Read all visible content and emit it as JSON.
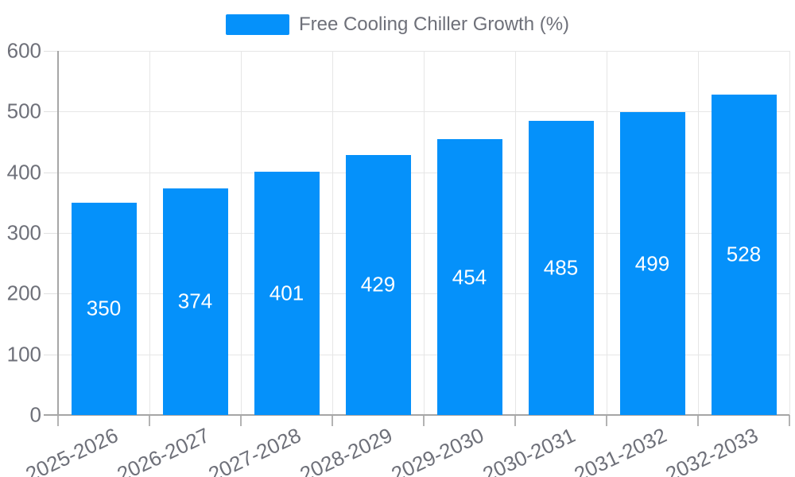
{
  "chart_data": {
    "type": "bar",
    "title": "Free Cooling Chiller Growth (%)",
    "categories": [
      "2025-2026",
      "2026-2027",
      "2027-2028",
      "2028-2029",
      "2029-2030",
      "2030-2031",
      "2031-2032",
      "2032-2033"
    ],
    "series": [
      {
        "name": "Free Cooling Chiller Growth (%)",
        "values": [
          350,
          374,
          401,
          429,
          454,
          485,
          499,
          528
        ]
      }
    ],
    "xlabel": "",
    "ylabel": "",
    "ylim": [
      0,
      600
    ],
    "yticks": [
      0,
      100,
      200,
      300,
      400,
      500,
      600
    ],
    "grid": true,
    "legend_position": "top-center",
    "x_label_rotation_deg": -25,
    "value_labels": "inside-center",
    "colors": {
      "bar": "#0591fa",
      "axis_label_text": "#6e7079",
      "legend_text": "#6e7079",
      "gridline": "#e6e6e6",
      "axis_line": "#a6a6a6",
      "tick_mark": "#b3b3b3",
      "y_tick_mark": "#e0e0e0",
      "value_label_text": "#ffffff",
      "background": "#ffffff"
    }
  }
}
